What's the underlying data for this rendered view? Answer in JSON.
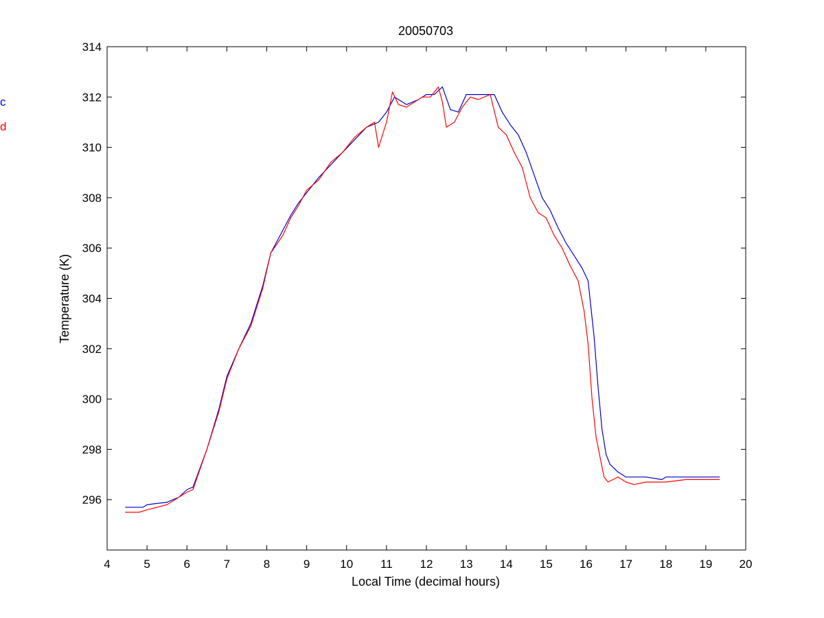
{
  "chart_data": {
    "type": "line",
    "title": "20050703",
    "xlabel": "Local Time (decimal hours)",
    "ylabel": "Temperature (K)",
    "xlim": [
      4,
      20
    ],
    "ylim": [
      294,
      314
    ],
    "xticks": [
      4,
      5,
      6,
      7,
      8,
      9,
      10,
      11,
      12,
      13,
      14,
      15,
      16,
      17,
      18,
      19,
      20
    ],
    "yticks": [
      296,
      298,
      300,
      302,
      304,
      306,
      308,
      310,
      312,
      314
    ],
    "grid": false,
    "legend_fragments": [
      {
        "text": "c",
        "color": "#0000ff"
      },
      {
        "text": "d",
        "color": "#ff0000"
      }
    ],
    "series": [
      {
        "color": "#0000cc",
        "x": [
          4.45,
          4.9,
          5.0,
          5.5,
          5.8,
          6.0,
          6.15,
          6.5,
          6.8,
          7.0,
          7.3,
          7.6,
          7.9,
          8.1,
          8.4,
          8.6,
          8.8,
          9.0,
          9.3,
          9.6,
          9.9,
          10.2,
          10.5,
          10.8,
          11.0,
          11.2,
          11.5,
          11.8,
          12.0,
          12.2,
          12.4,
          12.6,
          12.8,
          13.0,
          13.2,
          13.5,
          13.7,
          13.9,
          14.1,
          14.3,
          14.5,
          14.7,
          14.9,
          15.1,
          15.3,
          15.5,
          15.7,
          15.9,
          16.05,
          16.2,
          16.3,
          16.4,
          16.5,
          16.6,
          16.8,
          17.0,
          17.5,
          17.9,
          18.0,
          18.5,
          19.0,
          19.35
        ],
        "y": [
          295.7,
          295.7,
          295.8,
          295.9,
          296.1,
          296.4,
          296.5,
          298.0,
          299.6,
          300.9,
          302.0,
          303.0,
          304.5,
          305.8,
          306.7,
          307.3,
          307.8,
          308.2,
          308.8,
          309.3,
          309.8,
          310.3,
          310.8,
          311.0,
          311.4,
          312.0,
          311.7,
          311.9,
          312.1,
          312.1,
          312.4,
          311.5,
          311.4,
          312.1,
          312.1,
          312.1,
          312.1,
          311.4,
          310.9,
          310.5,
          309.8,
          308.9,
          308.0,
          307.5,
          306.8,
          306.2,
          305.7,
          305.2,
          304.7,
          302.5,
          300.5,
          298.8,
          297.8,
          297.4,
          297.1,
          296.9,
          296.9,
          296.8,
          296.9,
          296.9,
          296.9,
          296.9
        ]
      },
      {
        "color": "#ff0000",
        "x": [
          4.45,
          4.8,
          5.0,
          5.5,
          5.8,
          6.0,
          6.15,
          6.5,
          6.8,
          7.0,
          7.3,
          7.6,
          7.9,
          8.1,
          8.4,
          8.6,
          8.8,
          9.0,
          9.3,
          9.6,
          9.9,
          10.2,
          10.5,
          10.7,
          10.8,
          11.0,
          11.15,
          11.3,
          11.5,
          11.7,
          11.9,
          12.1,
          12.3,
          12.4,
          12.5,
          12.7,
          12.9,
          13.1,
          13.3,
          13.6,
          13.8,
          14.0,
          14.2,
          14.4,
          14.6,
          14.8,
          15.0,
          15.2,
          15.4,
          15.6,
          15.8,
          15.95,
          16.05,
          16.15,
          16.25,
          16.35,
          16.45,
          16.55,
          16.8,
          17.0,
          17.2,
          17.5,
          18.0,
          18.5,
          19.0,
          19.35
        ],
        "y": [
          295.5,
          295.5,
          295.6,
          295.8,
          296.1,
          296.3,
          296.4,
          298.0,
          299.5,
          300.8,
          302.0,
          302.9,
          304.4,
          305.8,
          306.5,
          307.2,
          307.7,
          308.3,
          308.7,
          309.4,
          309.8,
          310.4,
          310.8,
          311.0,
          310.0,
          311.0,
          312.2,
          311.7,
          311.6,
          311.8,
          312.0,
          312.0,
          312.4,
          311.8,
          310.8,
          311.0,
          311.6,
          312.0,
          311.9,
          312.1,
          310.8,
          310.5,
          309.8,
          309.2,
          308.0,
          307.4,
          307.2,
          306.5,
          306.0,
          305.3,
          304.7,
          303.5,
          302.2,
          300.0,
          298.5,
          297.7,
          296.9,
          296.7,
          296.9,
          296.7,
          296.6,
          296.7,
          296.7,
          296.8,
          296.8,
          296.8
        ]
      }
    ]
  }
}
